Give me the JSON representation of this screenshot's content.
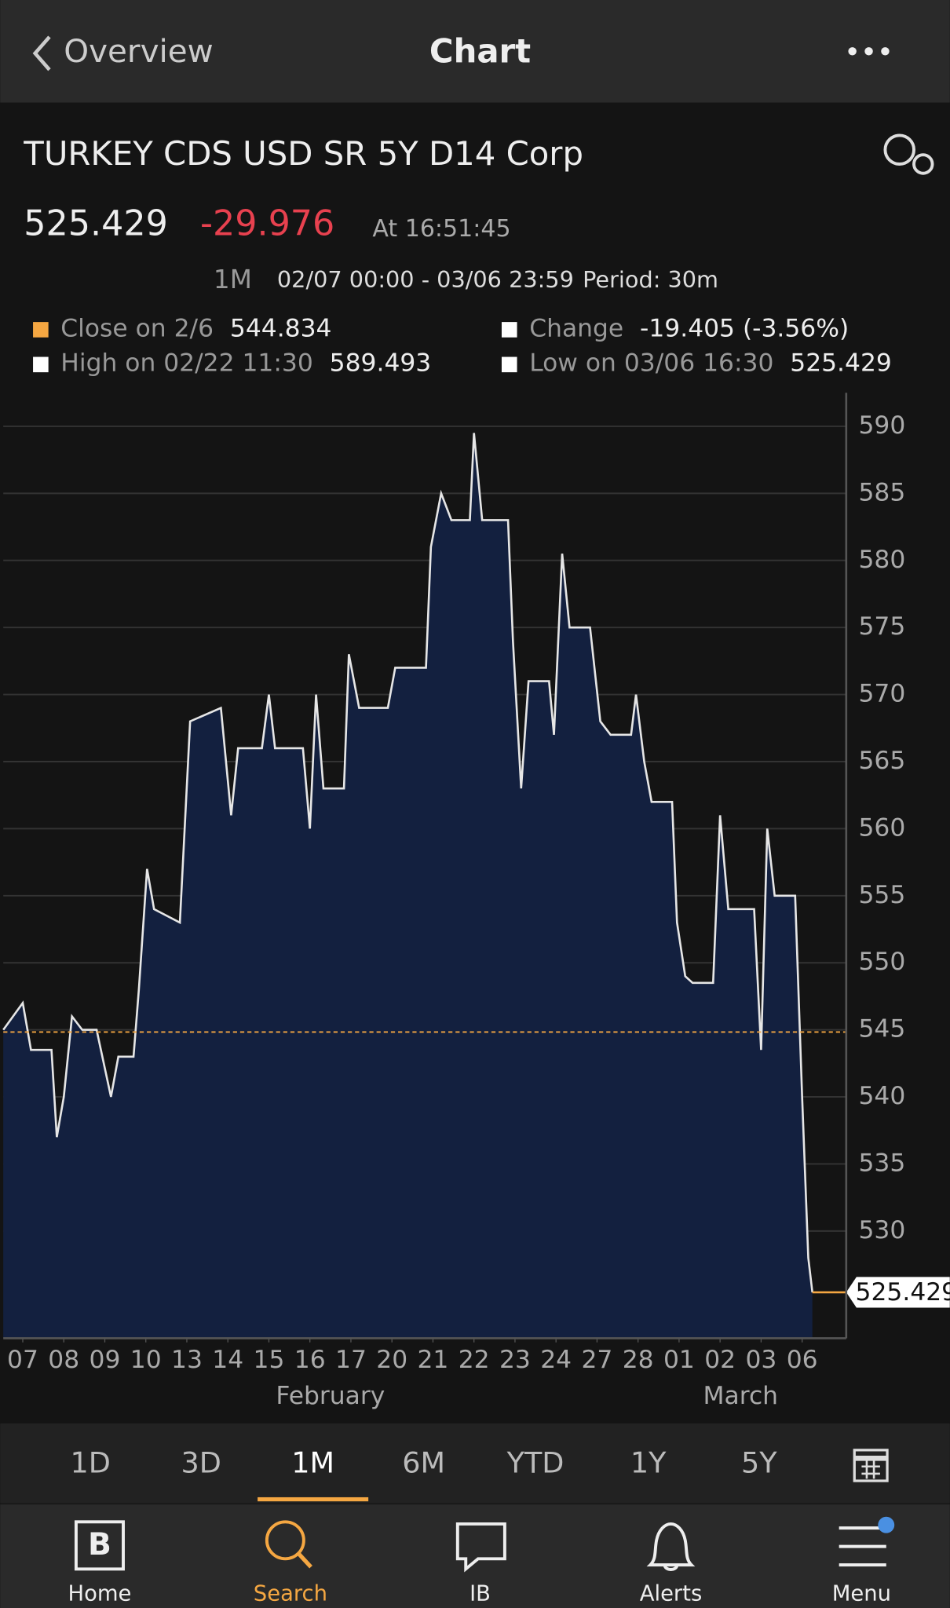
{
  "header": {
    "back": "Overview",
    "title": "Chart"
  },
  "quote": {
    "security": "TURKEY CDS USD SR 5Y D14 Corp",
    "price": 525.429,
    "change": -29.976,
    "time": "At 16:51:45",
    "range": "1M",
    "dates": "02/07 00:00 - 03/06 23:59",
    "period": "Period: 30m"
  },
  "legend": [
    {
      "label": "Close on 2/6",
      "value": 544.834
    },
    {
      "label": "Change",
      "value": "-19.405 (-3.56%)"
    },
    {
      "label": "High on 02/22 11:30",
      "value": 589.493
    },
    {
      "label": "Low on 03/06 16:30",
      "value": 525.429
    }
  ],
  "chart_data": {
    "type": "area",
    "color": "#13203f",
    "line_color": "#e6e6e6",
    "reference_line": 544.834,
    "reference_color": "#f5a742",
    "x": [
      -0.475,
      0,
      0.2,
      0.7,
      0.83,
      1.0,
      1.2,
      1.45,
      1.8,
      2.15,
      2.33,
      2.7,
      2.83,
      3.03,
      3.2,
      3.83,
      4.08,
      4.83,
      5.08,
      5.25,
      5.83,
      6.0,
      6.15,
      6.83,
      7.0,
      7.15,
      7.33,
      7.83,
      7.95,
      8.2,
      8.9,
      9.08,
      9.83,
      9.95,
      10.2,
      10.45,
      10.9,
      11.0,
      11.2,
      11.83,
      11.95,
      12.15,
      12.33,
      12.83,
      12.95,
      13.15,
      13.33,
      13.83,
      14.08,
      14.33,
      14.83,
      14.95,
      15.15,
      15.33,
      15.83,
      15.95,
      16.15,
      16.33,
      16.83,
      17.0,
      17.2,
      17.83,
      18.0,
      18.15,
      18.33,
      18.83,
      19.0,
      19.15,
      19.25
    ],
    "values": [
      545,
      547,
      543.5,
      543.5,
      537,
      540,
      546,
      545,
      545,
      540,
      543,
      543,
      548,
      557,
      554,
      553,
      568,
      569,
      561,
      566,
      566,
      570,
      566,
      566,
      560,
      570,
      563,
      563,
      573,
      569,
      569,
      572,
      572,
      581,
      585,
      583,
      583,
      589.5,
      583,
      583,
      574,
      563,
      571,
      571,
      567,
      580.5,
      575,
      575,
      568,
      567,
      567,
      570,
      565,
      562,
      562,
      553,
      549,
      548.5,
      548.5,
      561,
      554,
      554,
      543.5,
      560,
      555,
      555,
      540,
      528,
      525.429
    ],
    "xlim": [
      -0.475,
      20.075
    ],
    "ylim": [
      522.0,
      592.5
    ],
    "yticks": [
      530,
      535,
      540,
      545,
      550,
      555,
      560,
      565,
      570,
      575,
      580,
      585,
      590
    ],
    "xticks": [
      {
        "value": 0,
        "label": "07"
      },
      {
        "value": 1,
        "label": "08"
      },
      {
        "value": 2,
        "label": "09"
      },
      {
        "value": 3,
        "label": "10"
      },
      {
        "value": 4,
        "label": "13"
      },
      {
        "value": 5,
        "label": "14"
      },
      {
        "value": 6,
        "label": "15"
      },
      {
        "value": 7,
        "label": "16"
      },
      {
        "value": 8,
        "label": "17"
      },
      {
        "value": 9,
        "label": "20"
      },
      {
        "value": 10,
        "label": "21"
      },
      {
        "value": 11,
        "label": "22"
      },
      {
        "value": 12,
        "label": "23"
      },
      {
        "value": 13,
        "label": "24"
      },
      {
        "value": 14,
        "label": "27"
      },
      {
        "value": 15,
        "label": "28"
      },
      {
        "value": 16,
        "label": "01"
      },
      {
        "value": 17,
        "label": "02"
      },
      {
        "value": 18,
        "label": "03"
      },
      {
        "value": 19,
        "label": "06"
      }
    ],
    "month_labels": [
      {
        "value": 7.5,
        "label": "February"
      },
      {
        "value": 17.5,
        "label": "March"
      }
    ],
    "grid": true
  },
  "tabs": {
    "items": [
      "1D",
      "3D",
      "1M",
      "6M",
      "YTD",
      "1Y",
      "5Y"
    ],
    "active": 2
  },
  "nav": {
    "items": [
      "Home",
      "Search",
      "IB",
      "Alerts",
      "Menu"
    ],
    "active": 1
  }
}
